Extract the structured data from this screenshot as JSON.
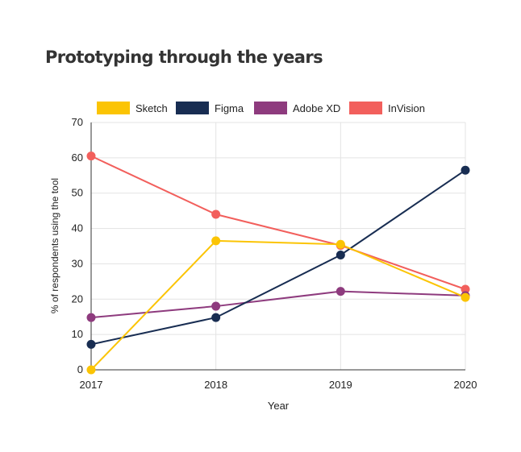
{
  "chart_data": {
    "type": "line",
    "title": "Prototyping through the years",
    "xlabel": "Year",
    "ylabel": "% of respondents using the tool",
    "x": [
      "2017",
      "2018",
      "2019",
      "2020"
    ],
    "ylim": [
      0,
      70
    ],
    "yticks": [
      0,
      10,
      20,
      30,
      40,
      50,
      60,
      70
    ],
    "grid": true,
    "legend_position": "top",
    "series": [
      {
        "name": "Sketch",
        "color": "#FBC404",
        "values": [
          0,
          36.5,
          35.5,
          20.5
        ]
      },
      {
        "name": "Figma",
        "color": "#182D52",
        "values": [
          7.2,
          14.8,
          32.5,
          56.5
        ]
      },
      {
        "name": "Adobe XD",
        "color": "#8E3B7E",
        "values": [
          14.8,
          18,
          22.2,
          21
        ]
      },
      {
        "name": "InVision",
        "color": "#F25F5C",
        "values": [
          60.5,
          44,
          35.2,
          22.8
        ]
      }
    ]
  }
}
